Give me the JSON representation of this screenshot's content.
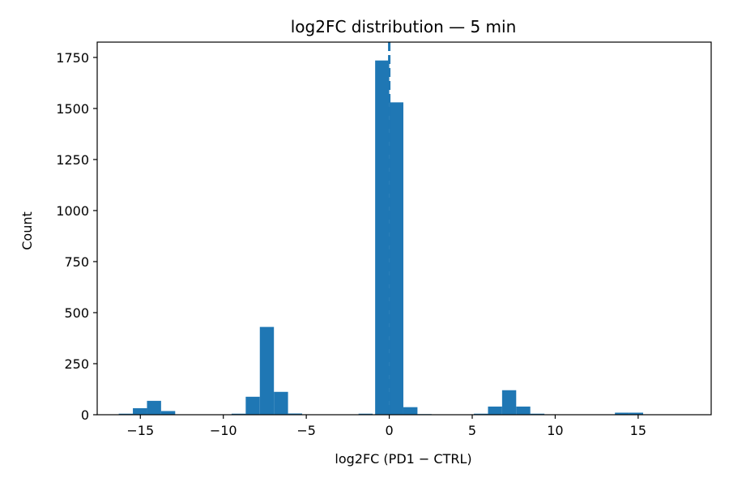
{
  "chart_data": {
    "type": "bar",
    "title": "log2FC distribution — 5 min",
    "xlabel": "log2FC (PD1 − CTRL)",
    "ylabel": "Count",
    "xlim": [
      -17.6,
      19.4
    ],
    "ylim": [
      0,
      1825
    ],
    "grid": false,
    "legend": "none",
    "bar_color": "#1f77b4",
    "bin_width": 0.85,
    "x_ticks": [
      {
        "value": -15,
        "label": "−15"
      },
      {
        "value": -10,
        "label": "−10"
      },
      {
        "value": -5,
        "label": "−5"
      },
      {
        "value": 0,
        "label": "0"
      },
      {
        "value": 5,
        "label": "5"
      },
      {
        "value": 10,
        "label": "10"
      },
      {
        "value": 15,
        "label": "15"
      }
    ],
    "y_ticks": [
      {
        "value": 0,
        "label": "0"
      },
      {
        "value": 250,
        "label": "250"
      },
      {
        "value": 500,
        "label": "500"
      },
      {
        "value": 750,
        "label": "750"
      },
      {
        "value": 1000,
        "label": "1000"
      },
      {
        "value": 1250,
        "label": "1250"
      },
      {
        "value": 1500,
        "label": "1500"
      },
      {
        "value": 1750,
        "label": "1750"
      }
    ],
    "bins": [
      {
        "x0": -16.3,
        "x1": -15.45,
        "count": 5
      },
      {
        "x0": -15.45,
        "x1": -14.6,
        "count": 32
      },
      {
        "x0": -14.6,
        "x1": -13.75,
        "count": 68
      },
      {
        "x0": -13.75,
        "x1": -12.9,
        "count": 18
      },
      {
        "x0": -12.9,
        "x1": -12.05,
        "count": 2
      },
      {
        "x0": -10.35,
        "x1": -9.5,
        "count": 2
      },
      {
        "x0": -9.5,
        "x1": -8.65,
        "count": 5
      },
      {
        "x0": -8.65,
        "x1": -7.8,
        "count": 88
      },
      {
        "x0": -7.8,
        "x1": -6.95,
        "count": 430
      },
      {
        "x0": -6.95,
        "x1": -6.1,
        "count": 112
      },
      {
        "x0": -6.1,
        "x1": -5.25,
        "count": 6
      },
      {
        "x0": -5.25,
        "x1": -4.4,
        "count": 2
      },
      {
        "x0": -2.7,
        "x1": -1.85,
        "count": 2
      },
      {
        "x0": -1.85,
        "x1": -1.0,
        "count": 5
      },
      {
        "x0": -0.85,
        "x1": 0.0,
        "count": 1735
      },
      {
        "x0": 0.0,
        "x1": 0.85,
        "count": 1530
      },
      {
        "x0": 0.85,
        "x1": 1.7,
        "count": 37
      },
      {
        "x0": 1.7,
        "x1": 2.55,
        "count": 3
      },
      {
        "x0": 2.55,
        "x1": 3.4,
        "count": 2
      },
      {
        "x0": 5.1,
        "x1": 5.95,
        "count": 5
      },
      {
        "x0": 5.95,
        "x1": 6.8,
        "count": 40
      },
      {
        "x0": 6.8,
        "x1": 7.65,
        "count": 120
      },
      {
        "x0": 7.65,
        "x1": 8.5,
        "count": 40
      },
      {
        "x0": 8.5,
        "x1": 9.35,
        "count": 5
      },
      {
        "x0": 11.05,
        "x1": 11.9,
        "count": 2
      },
      {
        "x0": 13.6,
        "x1": 14.45,
        "count": 10
      },
      {
        "x0": 14.45,
        "x1": 15.3,
        "count": 10
      },
      {
        "x0": 16.15,
        "x1": 17.0,
        "count": 2
      },
      {
        "x0": 17.0,
        "x1": 17.85,
        "count": 2
      }
    ],
    "vline": {
      "x": 0,
      "style": "dashed",
      "color": "#1f77b4"
    }
  }
}
